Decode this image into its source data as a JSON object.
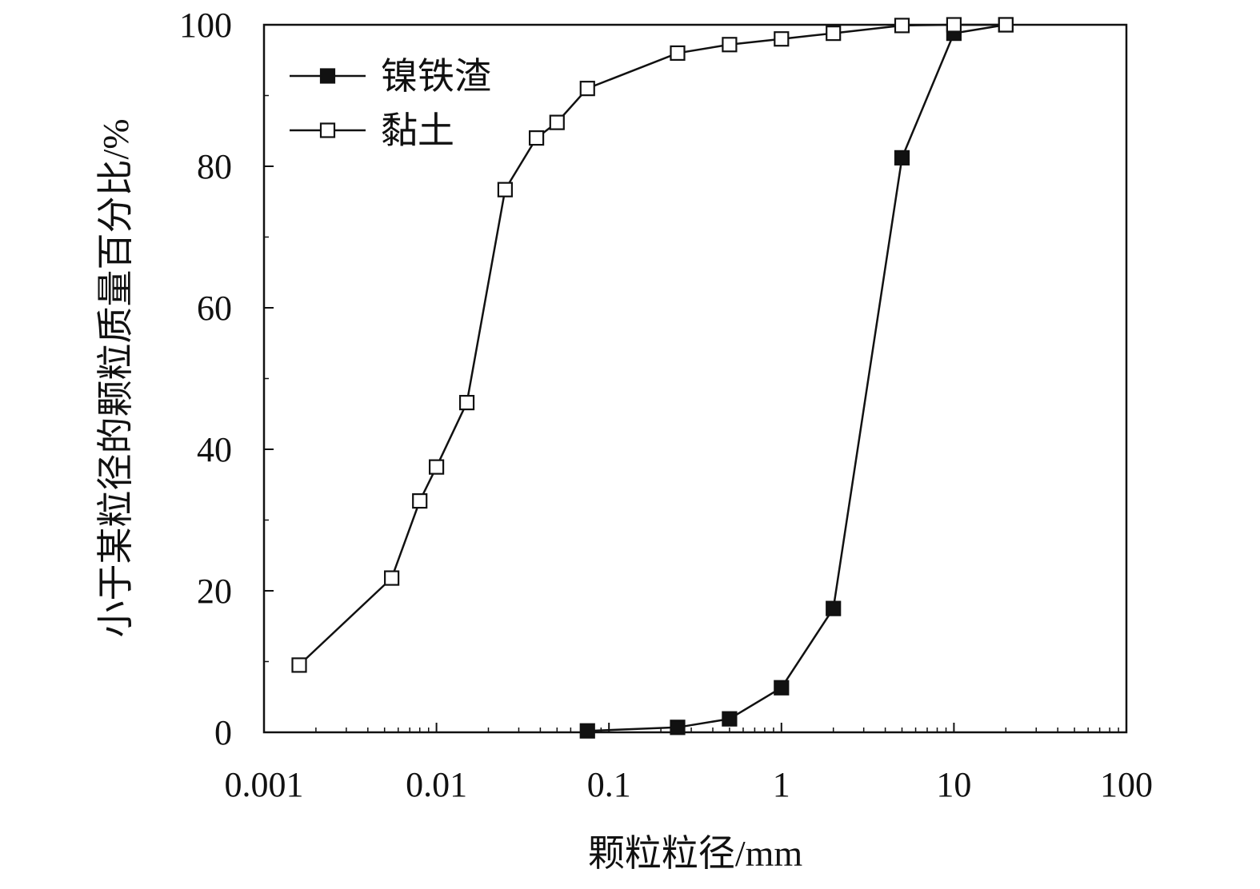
{
  "chart_data": {
    "type": "line",
    "title": "",
    "xlabel": "颗粒粒径/mm",
    "ylabel": "小于某粒径的颗粒质量百分比/%",
    "x_scale": "log",
    "xlim": [
      0.001,
      100
    ],
    "ylim": [
      0,
      100
    ],
    "x_ticks": [
      0.001,
      0.01,
      0.1,
      1,
      10,
      100
    ],
    "x_tick_labels": [
      "0.001",
      "0.01",
      "0.1",
      "1",
      "10",
      "100"
    ],
    "y_ticks": [
      0,
      20,
      40,
      60,
      80,
      100
    ],
    "y_tick_labels": [
      "0",
      "20",
      "40",
      "60",
      "80",
      "100"
    ],
    "grid": false,
    "legend_position": "top-left",
    "series": [
      {
        "name": "镍铁渣",
        "marker": "filled-square",
        "color": "#111111",
        "x": [
          0.075,
          0.25,
          0.5,
          1,
          2,
          5,
          10,
          20
        ],
        "y": [
          0.2,
          0.7,
          1.9,
          6.3,
          17.5,
          81.2,
          98.8,
          100
        ]
      },
      {
        "name": "黏土",
        "marker": "open-square",
        "color": "#111111",
        "x": [
          0.0016,
          0.0055,
          0.008,
          0.01,
          0.015,
          0.025,
          0.038,
          0.05,
          0.075,
          0.25,
          0.5,
          1,
          2,
          5,
          10,
          20
        ],
        "y": [
          9.5,
          21.8,
          32.7,
          37.5,
          46.6,
          76.7,
          84.0,
          86.2,
          91.0,
          96.0,
          97.2,
          98.0,
          98.8,
          99.9,
          100,
          100
        ]
      }
    ]
  }
}
